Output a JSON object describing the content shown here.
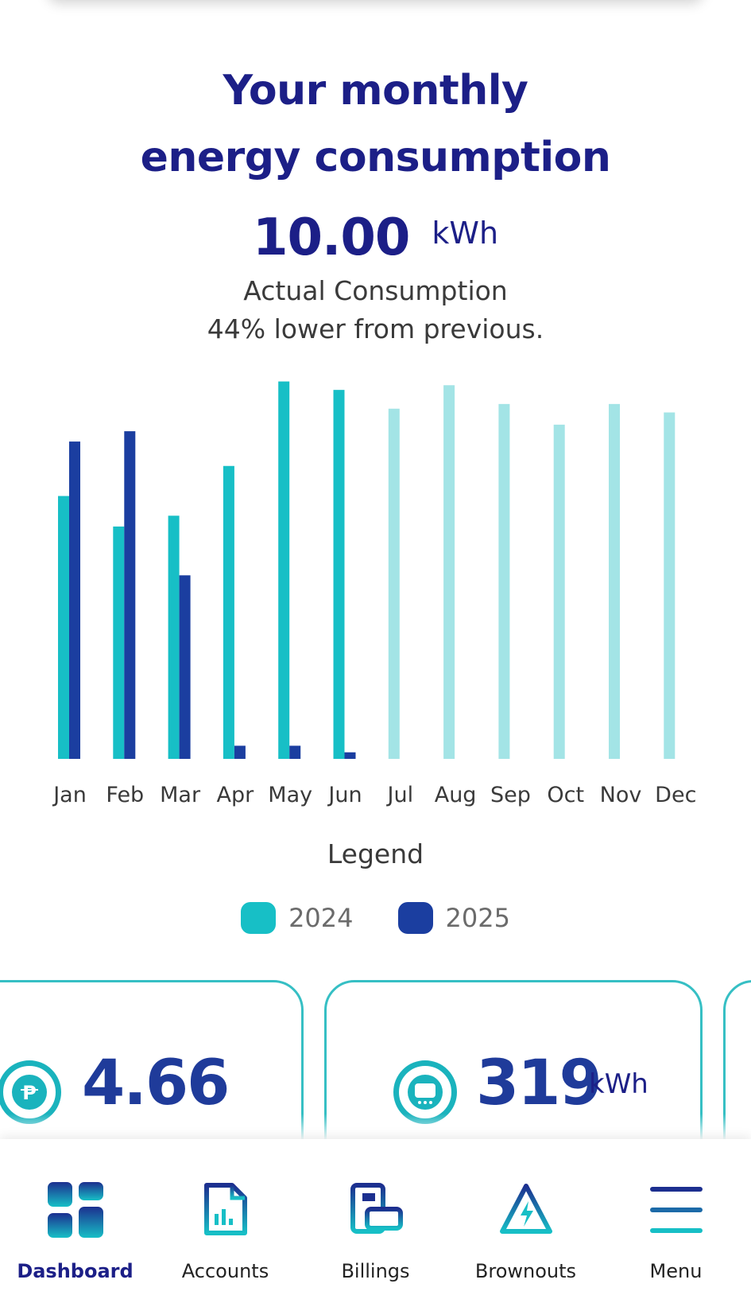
{
  "header": {
    "title_line1": "Your monthly",
    "title_line2": "energy consumption"
  },
  "summary": {
    "value": "10.00",
    "unit": "kWh",
    "label": "Actual Consumption",
    "comparison": "44% lower from previous."
  },
  "colors": {
    "series_2024": "#17bfc6",
    "series_2024_future": "#a3e4e6",
    "series_2025": "#1b3ea0",
    "title": "#1c1f87",
    "card_border": "#36bfc4"
  },
  "chart_data": {
    "type": "bar",
    "categories": [
      "Jan",
      "Feb",
      "Mar",
      "Apr",
      "May",
      "Jun",
      "Jul",
      "Aug",
      "Sep",
      "Oct",
      "Nov",
      "Dec"
    ],
    "series": [
      {
        "name": "2024",
        "values": [
          560,
          495,
          518,
          624,
          804,
          786,
          746,
          796,
          756,
          712,
          756,
          738
        ]
      },
      {
        "name": "2025",
        "values": [
          676,
          698,
          391,
          28,
          28,
          14,
          null,
          null,
          null,
          null,
          null,
          null
        ]
      }
    ],
    "ylim": [
      0,
      810
    ],
    "legend_title": "Legend",
    "legend_placement": "bottom",
    "grid": false
  },
  "cards": [
    {
      "icon": "peso-icon",
      "value": "4.66",
      "unit": ""
    },
    {
      "icon": "meter-icon",
      "value": "319",
      "unit": "kWh"
    }
  ],
  "nav": {
    "items": [
      {
        "label": "Dashboard",
        "icon": "dashboard-icon",
        "active": true
      },
      {
        "label": "Accounts",
        "icon": "accounts-icon",
        "active": false
      },
      {
        "label": "Billings",
        "icon": "billings-icon",
        "active": false
      },
      {
        "label": "Brownouts",
        "icon": "brownouts-icon",
        "active": false
      },
      {
        "label": "Menu",
        "icon": "menu-icon",
        "active": false
      }
    ]
  }
}
